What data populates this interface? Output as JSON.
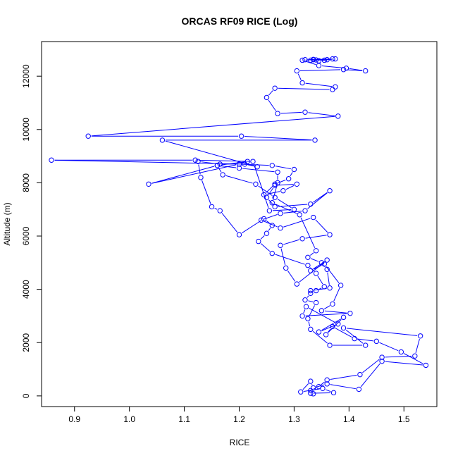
{
  "chart_data": {
    "type": "line",
    "title": "ORCAS RF09 RICE (Log)",
    "xlabel": "RICE",
    "ylabel": "Altitude (m)",
    "xlim": [
      0.84,
      1.56
    ],
    "ylim": [
      -400,
      13300
    ],
    "xticks": [
      0.9,
      1.0,
      1.1,
      1.2,
      1.3,
      1.4,
      1.5
    ],
    "xtick_labels": [
      "0.9",
      "1.0",
      "1.1",
      "1.2",
      "1.3",
      "1.4",
      "1.5"
    ],
    "yticks": [
      0,
      2000,
      4000,
      6000,
      8000,
      10000,
      12000
    ],
    "ytick_labels": [
      "0",
      "2000",
      "4000",
      "6000",
      "8000",
      "10000",
      "12000"
    ],
    "grid": false,
    "legend": "none",
    "color": "#0000ff",
    "series": [
      {
        "x": [
          1.33,
          1.372,
          1.352,
          1.312,
          1.33,
          1.335,
          1.36,
          1.418,
          1.46,
          1.54,
          1.495,
          1.45,
          1.41,
          1.37,
          1.358,
          1.39,
          1.345,
          1.38,
          1.322,
          1.315,
          1.402,
          1.35,
          1.37,
          1.385,
          1.355,
          1.33,
          1.36,
          1.305,
          1.285,
          1.275,
          1.315,
          1.365,
          1.335,
          1.275,
          1.24,
          1.275,
          1.32,
          1.365,
          1.33,
          1.265,
          1.25,
          1.265,
          1.305,
          1.28,
          1.245,
          1.265,
          1.29,
          1.3,
          1.26,
          1.2,
          1.215,
          1.16,
          1.17,
          1.23,
          1.265,
          1.3,
          1.255,
          1.225,
          1.12,
          0.858,
          1.21,
          1.233,
          1.06,
          1.338,
          1.204,
          0.925,
          1.38,
          1.32,
          1.27,
          1.25,
          1.265,
          1.37,
          1.375,
          1.315,
          1.305,
          1.39,
          1.43,
          1.395,
          1.345,
          1.315,
          1.335,
          1.355,
          1.37,
          1.34,
          1.32,
          1.375,
          1.345,
          1.33,
          1.36,
          1.335
        ],
        "y": [
          100,
          120,
          280,
          150,
          550,
          300,
          450,
          250,
          1300,
          1150,
          1650,
          2050,
          2150,
          2600,
          2300,
          2950,
          2400,
          2700,
          3350,
          3000,
          3100,
          3200,
          3450,
          4150,
          4950,
          4700,
          5100,
          4200,
          4800,
          5650,
          5900,
          6050,
          6700,
          6300,
          6600,
          6850,
          6950,
          7700,
          7200,
          7100,
          7450,
          7900,
          7950,
          7700,
          7550,
          7950,
          8150,
          8500,
          8650,
          8700,
          8800,
          8650,
          8300,
          7950,
          7450,
          7000,
          6950,
          8800,
          8850,
          8850,
          8700,
          8600,
          9600,
          9600,
          9750,
          9750,
          10500,
          10650,
          10600,
          11200,
          11550,
          11500,
          11600,
          11750,
          12200,
          12250,
          12200,
          12300,
          12400,
          12600,
          12620,
          12600,
          12650,
          12610,
          12620,
          12650,
          12580,
          12600,
          12620,
          12630
        ]
      },
      {
        "x": [
          1.335,
          1.33,
          1.345,
          1.36,
          1.42,
          1.46,
          1.52,
          1.53,
          1.39,
          1.43,
          1.365,
          1.33,
          1.325,
          1.34,
          1.32,
          1.33,
          1.34,
          1.355,
          1.34,
          1.325,
          1.26,
          1.235,
          1.25,
          1.26,
          1.245,
          1.2,
          1.165,
          1.15,
          1.13,
          1.125,
          1.165,
          1.2,
          1.035,
          1.16,
          1.2,
          1.27,
          1.27,
          1.26,
          1.31,
          1.34,
          1.325,
          1.35,
          1.36,
          1.365,
          1.33
        ],
        "y": [
          80,
          200,
          350,
          600,
          800,
          1450,
          1500,
          2250,
          2550,
          1900,
          1900,
          2500,
          2900,
          3500,
          3600,
          3850,
          3950,
          4100,
          4600,
          4900,
          5350,
          5800,
          6100,
          6400,
          6650,
          6050,
          6950,
          7100,
          8200,
          8800,
          8700,
          8700,
          7950,
          8650,
          8550,
          8400,
          8000,
          7250,
          6800,
          5450,
          5200,
          5000,
          4750,
          4050,
          3950
        ]
      }
    ]
  }
}
